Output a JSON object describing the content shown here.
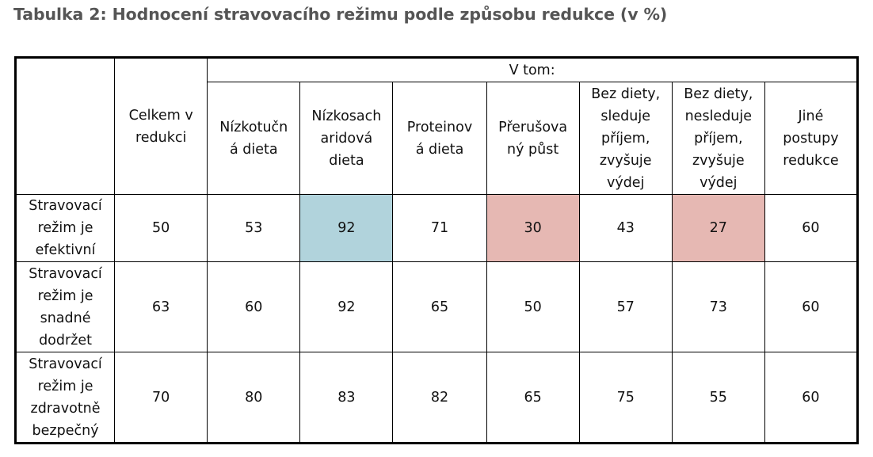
{
  "title": "Tabulka 2: Hodnocení stravovacího režimu podle způsobu redukce (v %)",
  "table": {
    "corner": "",
    "total_header": "Celkem v\nredukci",
    "group_header": "V tom:",
    "columns": [
      "Nízkotučn\ná dieta",
      "Nízkosach\naridová\ndieta",
      "Proteinov\ná dieta",
      "Přerušova\nný půst",
      "Bez diety,\nsleduje\npříjem,\nzvyšuje\nvýdej",
      "Bez diety,\nnesleduje\npříjem,\nzvyšuje\nvýdej",
      "Jiné\npostupy\nredukce"
    ],
    "rows": [
      {
        "label": "Stravovací\nrežim je\nefektivní",
        "total": "50",
        "values": [
          "53",
          "92",
          "71",
          "30",
          "43",
          "27",
          "60"
        ]
      },
      {
        "label": "Stravovací\nrežim je\nsnadné\ndodržet",
        "total": "63",
        "values": [
          "60",
          "92",
          "65",
          "50",
          "57",
          "73",
          "60"
        ]
      },
      {
        "label": "Stravovací\nrežim je\nzdravotně\nbezpečný",
        "total": "70",
        "values": [
          "80",
          "83",
          "82",
          "65",
          "75",
          "55",
          "60"
        ]
      }
    ],
    "highlight_colors": {
      "blue": "#b1d3dc",
      "pink": "#e6b8b3"
    }
  }
}
